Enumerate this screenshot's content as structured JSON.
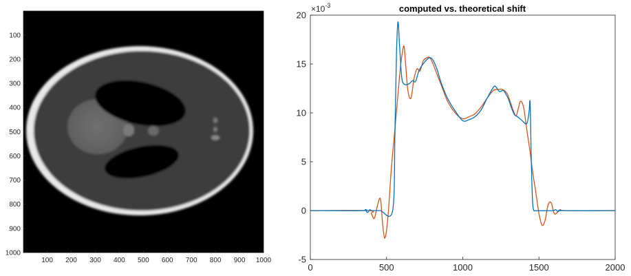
{
  "chart_data": [
    {
      "type": "heatmap",
      "description_kind": "grayscale image",
      "xlim": [
        1,
        1000
      ],
      "ylim": [
        1,
        1000
      ],
      "y_reversed": true,
      "x_ticks": [
        100,
        200,
        300,
        400,
        500,
        600,
        700,
        800,
        900,
        1000
      ],
      "y_ticks": [
        100,
        200,
        300,
        400,
        500,
        600,
        700,
        800,
        900,
        1000
      ],
      "colormap": "gray"
    },
    {
      "type": "line",
      "title": "computed vs. theoretical shift",
      "xlim": [
        0,
        2000
      ],
      "ylim": [
        -5,
        20
      ],
      "y_exponent_label": "×10",
      "y_exponent_power": "-3",
      "x_ticks": [
        0,
        500,
        1000,
        1500,
        2000
      ],
      "y_ticks": [
        -5,
        0,
        5,
        10,
        15,
        20
      ],
      "series": [
        {
          "color": "#0072BD",
          "x": [
            0,
            340,
            360,
            375,
            390,
            400,
            420,
            460,
            540,
            555,
            565,
            575,
            585,
            600,
            620,
            650,
            670,
            690,
            710,
            730,
            750,
            775,
            800,
            830,
            860,
            900,
            950,
            1000,
            1040,
            1080,
            1120,
            1160,
            1200,
            1215,
            1240,
            1265,
            1280,
            1300,
            1320,
            1340,
            1360,
            1390,
            1420,
            1435,
            1442,
            1450,
            1460,
            1480,
            1500,
            1590,
            1610,
            1625,
            1640,
            1660,
            2000
          ],
          "y": [
            0,
            0,
            0.1,
            -0.2,
            0.1,
            0,
            0,
            0,
            0,
            8,
            16,
            19.3,
            17,
            13.6,
            12.9,
            13.0,
            13.3,
            13.2,
            14.2,
            14.8,
            15.2,
            15.6,
            15.5,
            14.5,
            13.0,
            11.5,
            10.2,
            9.2,
            9.3,
            9.6,
            10.3,
            11.5,
            12.6,
            12.7,
            12.2,
            12.3,
            12.0,
            11.4,
            10.5,
            9.8,
            9.6,
            9.2,
            8.9,
            10.1,
            11.0,
            5,
            0.5,
            0,
            0,
            0,
            0.1,
            -0.1,
            0.05,
            0,
            0
          ]
        },
        {
          "color": "#D95319",
          "x": [
            0,
            380,
            400,
            420,
            440,
            460,
            475,
            490,
            510,
            530,
            550,
            570,
            590,
            605,
            615,
            625,
            640,
            660,
            680,
            700,
            720,
            740,
            760,
            780,
            800,
            830,
            860,
            900,
            950,
            1000,
            1040,
            1080,
            1120,
            1160,
            1200,
            1230,
            1260,
            1290,
            1310,
            1330,
            1350,
            1365,
            1380,
            1400,
            1420,
            1440,
            1460,
            1480,
            1500,
            1520,
            1540,
            1560,
            1580,
            1600,
            1620,
            1640,
            1680,
            2000
          ],
          "y": [
            0,
            0,
            -0.3,
            -0.8,
            0.5,
            1.2,
            -1.5,
            -2.8,
            -0.5,
            4,
            7.5,
            11,
            14.5,
            16.3,
            16.8,
            15,
            12.3,
            11.5,
            13.5,
            14.5,
            14.3,
            15.3,
            15.6,
            15.7,
            15.2,
            14.0,
            12.8,
            11.2,
            10.0,
            9.4,
            9.6,
            9.9,
            10.6,
            11.5,
            12.3,
            12.4,
            12.4,
            12.0,
            11.2,
            10.3,
            9.7,
            10.5,
            11.2,
            10.5,
            8.3,
            6.2,
            3.8,
            1.8,
            -0.3,
            -1.5,
            -1.0,
            0.6,
            0.8,
            -0.3,
            -0.2,
            0.1,
            0,
            0
          ]
        }
      ]
    }
  ]
}
